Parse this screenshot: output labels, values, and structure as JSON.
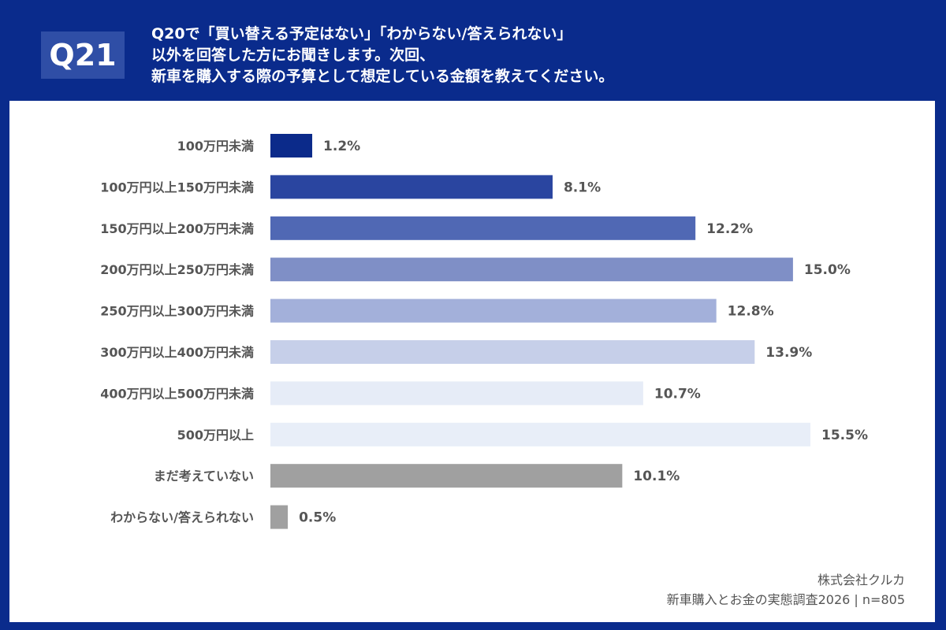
{
  "header": {
    "question_number": "Q21",
    "question_lines": [
      "Q20で「買い替える予定はない」「わからない/答えられない」",
      "以外を回答した方にお聞きします。次回、",
      "新車を購入する際の予算として想定している金額を教えてください。"
    ]
  },
  "chart_data": {
    "type": "bar",
    "orientation": "horizontal",
    "categories": [
      "100万円未満",
      "100万円以上150万円未満",
      "150万円以上200万円未満",
      "200万円以上250万円未満",
      "250万円以上300万円未満",
      "300万円以上400万円未満",
      "400万円以上500万円未満",
      "500万円以上",
      "まだ考えていない",
      "わからない/答えられない"
    ],
    "values": [
      1.2,
      8.1,
      12.2,
      15.0,
      12.8,
      13.9,
      10.7,
      15.5,
      10.1,
      0.5
    ],
    "labels": [
      "1.2%",
      "8.1%",
      "12.2%",
      "15.0%",
      "12.8%",
      "13.9%",
      "10.7%",
      "15.5%",
      "10.1%",
      "0.5%"
    ],
    "colors": [
      "#0b2a8a",
      "#2a45a0",
      "#5068b4",
      "#7f8fc6",
      "#a3b0da",
      "#c6cfe9",
      "#e6ecf7",
      "#e8eef8",
      "#a0a0a0",
      "#a0a0a0"
    ],
    "unit": "%",
    "grid": false,
    "legend": "none"
  },
  "footer": {
    "company": "株式会社クルカ",
    "survey": "新車購入とお金の実態調査2026 | n=805"
  },
  "colors": {
    "frame": "#0a2b8c",
    "q_box": "#2f4ea6"
  }
}
